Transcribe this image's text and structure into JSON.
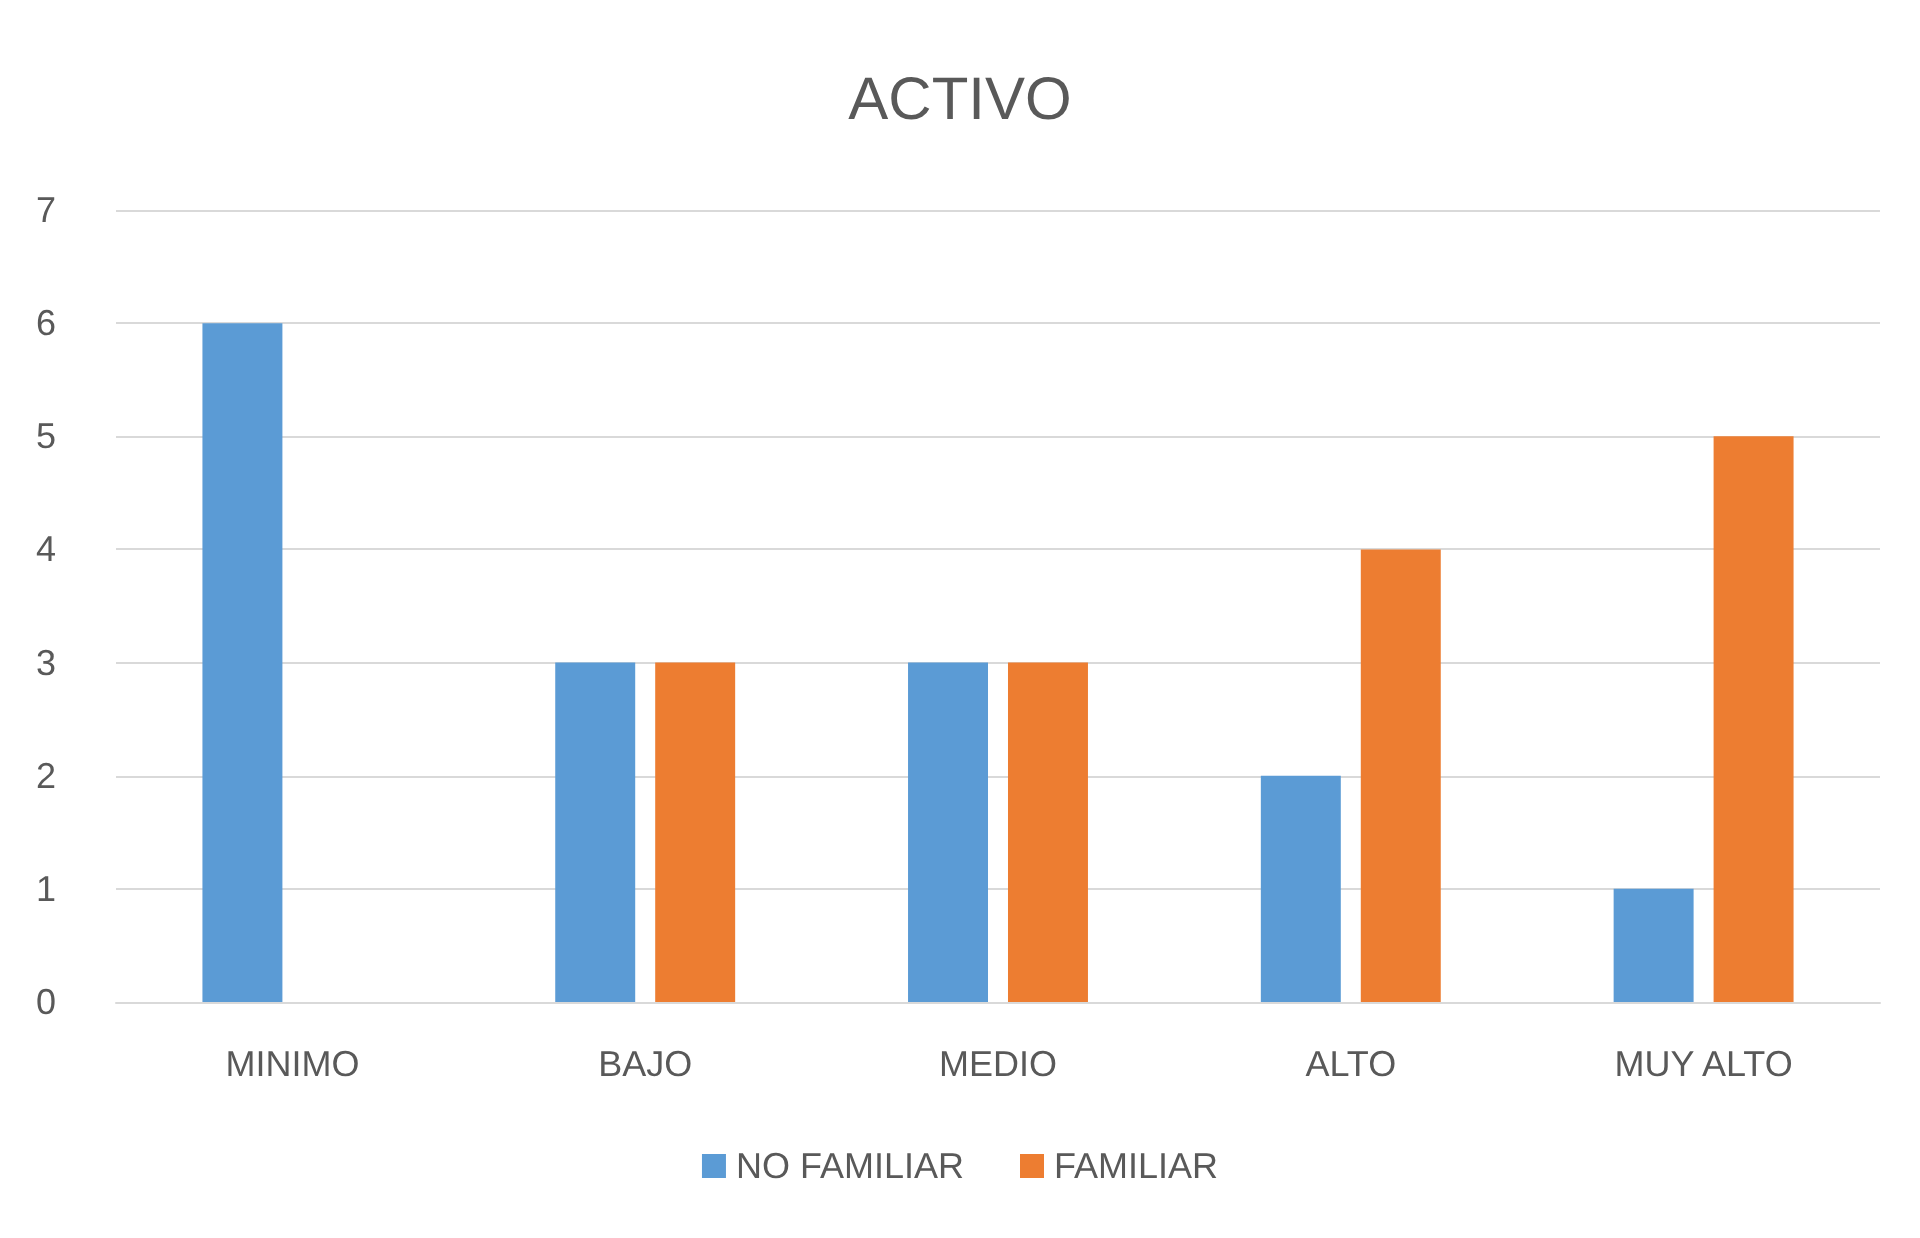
{
  "chart_data": {
    "type": "bar",
    "title": "ACTIVO",
    "categories": [
      "MINIMO",
      "BAJO",
      "MEDIO",
      "ALTO",
      "MUY ALTO"
    ],
    "series": [
      {
        "name": "NO FAMILIAR",
        "color": "#5b9bd5",
        "values": [
          6,
          3,
          3,
          2,
          1
        ]
      },
      {
        "name": "FAMILIAR",
        "color": "#ed7d31",
        "values": [
          0,
          3,
          3,
          4,
          5
        ]
      }
    ],
    "ylim": [
      0,
      7
    ],
    "yticks": [
      0,
      1,
      2,
      3,
      4,
      5,
      6,
      7
    ],
    "grid": "y",
    "legend": "bottom"
  }
}
